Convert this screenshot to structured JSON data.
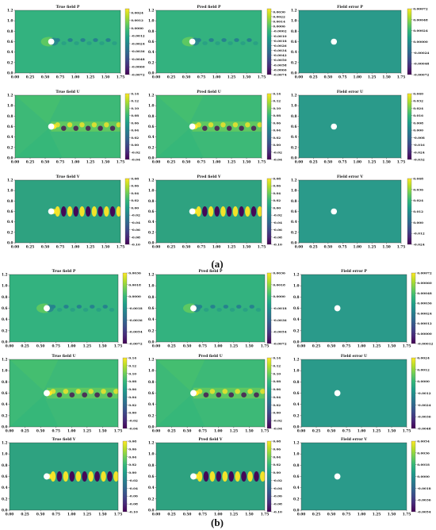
{
  "chart_data": [
    {
      "type": "heatmap",
      "group": "(a)",
      "panels": [
        {
          "title": "True field P",
          "kind": "p",
          "cb_ticks": [
            "0.0024",
            "0.0012",
            "0.0000",
            "-0.0012",
            "-0.0024",
            "-0.0036",
            "-0.0048",
            "-0.0060",
            "-0.0072"
          ],
          "vrange": [
            -0.0072,
            0.003
          ]
        },
        {
          "title": "Pred field P",
          "kind": "p",
          "cb_ticks": [
            "0.0030",
            "0.0022",
            "0.0014",
            "0.0006",
            "-0.0002",
            "-0.0010",
            "-0.0018",
            "-0.0026",
            "-0.0034",
            "-0.0042",
            "-0.0050",
            "-0.0058",
            "-0.0066",
            "-0.0074"
          ],
          "vrange": [
            -0.0074,
            0.0035
          ]
        },
        {
          "title": "Field error P",
          "kind": "err",
          "cb_ticks": [
            "0.00072",
            "0.00048",
            "0.00024",
            "0.00000",
            "-0.00024",
            "-0.00048",
            "-0.00072"
          ],
          "vrange": [
            -0.00072,
            0.00072
          ]
        },
        {
          "title": "True field U",
          "kind": "u",
          "cb_ticks": [
            "0.14",
            "0.12",
            "0.10",
            "0.08",
            "0.06",
            "0.04",
            "0.02",
            "0.00",
            "-0.02",
            "-0.04"
          ],
          "vrange": [
            -0.04,
            0.14
          ]
        },
        {
          "title": "Pred field U",
          "kind": "u",
          "cb_ticks": [
            "0.14",
            "0.12",
            "0.10",
            "0.08",
            "0.06",
            "0.04",
            "0.02",
            "0.00",
            "-0.02",
            "-0.04"
          ],
          "vrange": [
            -0.04,
            0.14
          ]
        },
        {
          "title": "Field error U",
          "kind": "err",
          "cb_ticks": [
            "0.040",
            "0.032",
            "0.024",
            "0.016",
            "0.008",
            "0.000",
            "-0.008",
            "-0.016",
            "-0.024",
            "-0.032"
          ],
          "vrange": [
            -0.032,
            0.04
          ]
        },
        {
          "title": "True field V",
          "kind": "v",
          "cb_ticks": [
            "0.08",
            "0.06",
            "0.04",
            "0.02",
            "0.00",
            "-0.02",
            "-0.04",
            "-0.06",
            "-0.08",
            "-0.10"
          ],
          "vrange": [
            -0.1,
            0.08
          ]
        },
        {
          "title": "Pred field V",
          "kind": "v",
          "cb_ticks": [
            "0.08",
            "0.06",
            "0.04",
            "0.02",
            "0.00",
            "-0.02",
            "-0.04",
            "-0.06",
            "-0.08",
            "-0.10"
          ],
          "vrange": [
            -0.1,
            0.08
          ]
        },
        {
          "title": "Field error V",
          "kind": "err",
          "cb_ticks": [
            "0.048",
            "0.036",
            "0.024",
            "0.012",
            "0.000",
            "-0.012",
            "-0.024"
          ],
          "vrange": [
            -0.024,
            0.048
          ]
        }
      ]
    },
    {
      "type": "heatmap",
      "group": "(b)",
      "panels": [
        {
          "title": "True field P",
          "kind": "p",
          "cb_ticks": [
            "0.0036",
            "0.0018",
            "0.0000",
            "-0.0018",
            "-0.0036",
            "-0.0054",
            "-0.0072"
          ],
          "vrange": [
            -0.0072,
            0.0036
          ]
        },
        {
          "title": "Pred field P",
          "kind": "p",
          "cb_ticks": [
            "0.0036",
            "0.0018",
            "0.0000",
            "-0.0018",
            "-0.0036",
            "-0.0054",
            "-0.0072"
          ],
          "vrange": [
            -0.0072,
            0.0036
          ]
        },
        {
          "title": "Field error P",
          "kind": "err",
          "cb_ticks": [
            "0.00072",
            "0.00060",
            "0.00048",
            "0.00036",
            "0.00024",
            "0.00012",
            "0.00000",
            "-0.00012"
          ],
          "vrange": [
            -0.00012,
            0.00072
          ]
        },
        {
          "title": "True field U",
          "kind": "u",
          "cb_ticks": [
            "0.14",
            "0.12",
            "0.10",
            "0.08",
            "0.06",
            "0.04",
            "0.02",
            "0.00",
            "-0.02",
            "-0.04"
          ],
          "vrange": [
            -0.04,
            0.14
          ]
        },
        {
          "title": "Pred field U",
          "kind": "u",
          "cb_ticks": [
            "0.14",
            "0.12",
            "0.10",
            "0.08",
            "0.06",
            "0.04",
            "0.02",
            "0.00",
            "-0.02",
            "-0.04"
          ],
          "vrange": [
            -0.04,
            0.14
          ]
        },
        {
          "title": "Field error U",
          "kind": "err",
          "cb_ticks": [
            "0.0024",
            "0.0012",
            "0.0000",
            "-0.0012",
            "-0.0024",
            "-0.0036",
            "-0.0048"
          ],
          "vrange": [
            -0.0048,
            0.0024
          ]
        },
        {
          "title": "True field V",
          "kind": "v",
          "cb_ticks": [
            "0.08",
            "0.06",
            "0.04",
            "0.02",
            "0.00",
            "-0.02",
            "-0.04",
            "-0.06",
            "-0.08",
            "-0.10"
          ],
          "vrange": [
            -0.1,
            0.08
          ]
        },
        {
          "title": "Pred field V",
          "kind": "v",
          "cb_ticks": [
            "0.08",
            "0.06",
            "0.04",
            "0.02",
            "0.00",
            "-0.02",
            "-0.04",
            "-0.06",
            "-0.08",
            "-0.10"
          ],
          "vrange": [
            -0.1,
            0.08
          ]
        },
        {
          "title": "Field error V",
          "kind": "err",
          "cb_ticks": [
            "0.0054",
            "0.0036",
            "0.0018",
            "0.0000",
            "-0.0018",
            "-0.0036",
            "-0.0054"
          ],
          "vrange": [
            -0.0054,
            0.0054
          ]
        }
      ]
    }
  ],
  "axes": {
    "x_ticks": [
      "0.00",
      "0.25",
      "0.50",
      "0.75",
      "1.00",
      "1.25",
      "1.50",
      "1.75"
    ],
    "y_ticks": [
      "0.0",
      "0.2",
      "0.4",
      "0.6",
      "0.8",
      "1.0",
      "1.2"
    ],
    "xlim": [
      0,
      1.75
    ],
    "ylim": [
      0,
      1.2
    ],
    "cylinder_center": [
      0.6,
      0.6
    ]
  },
  "colormap": "viridis"
}
